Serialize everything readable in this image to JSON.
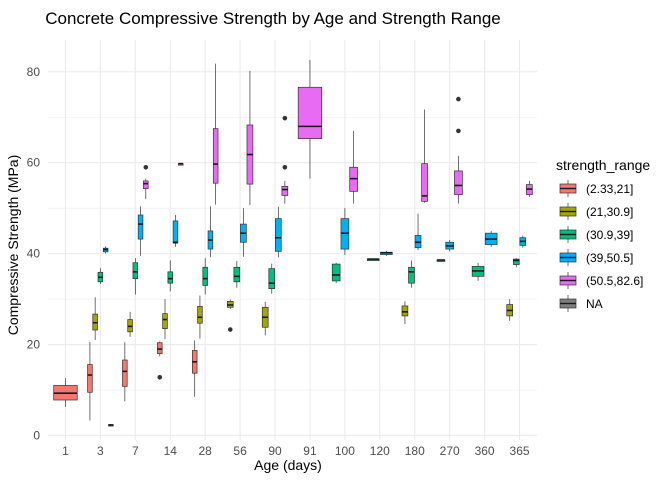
{
  "chart_data": {
    "type": "boxplot",
    "title": "Concrete Compressive Strength by Age and Strength Range",
    "xlabel": "Age (days)",
    "ylabel": "Compressive Strength (MPa)",
    "ylim": [
      -1,
      87
    ],
    "yticks": [
      0,
      20,
      40,
      60,
      80
    ],
    "categories": [
      "1",
      "3",
      "7",
      "14",
      "28",
      "56",
      "90",
      "91",
      "100",
      "120",
      "180",
      "270",
      "360",
      "365"
    ],
    "grid": true,
    "legend": {
      "title": "strength_range",
      "placement": "right",
      "entries": [
        {
          "label": "(2.33,21]",
          "color": "#F8766D"
        },
        {
          "label": "(21,30.9]",
          "color": "#A3A500"
        },
        {
          "label": "(30.9,39]",
          "color": "#00BF7D"
        },
        {
          "label": "(39,50.5]",
          "color": "#00B0F6"
        },
        {
          "label": "(50.5,82.6]",
          "color": "#E76BF3"
        },
        {
          "label": "NA",
          "color": "#7F7F7F"
        }
      ]
    },
    "boxes": [
      {
        "category": "1",
        "group": "(2.33,21]",
        "whisker_low": 6.3,
        "q1": 7.8,
        "median": 9.3,
        "q3": 11.0,
        "whisker_high": 12.6,
        "outliers": []
      },
      {
        "category": "3",
        "group": "(2.33,21]",
        "whisker_low": 3.3,
        "q1": 9.5,
        "median": 13.3,
        "q3": 15.6,
        "whisker_high": 20.6,
        "outliers": []
      },
      {
        "category": "3",
        "group": "(21,30.9]",
        "whisker_low": 21.0,
        "q1": 23.2,
        "median": 24.8,
        "q3": 26.7,
        "whisker_high": 30.4,
        "outliers": []
      },
      {
        "category": "3",
        "group": "(30.9,39]",
        "whisker_low": 33.3,
        "q1": 33.8,
        "median": 34.8,
        "q3": 35.9,
        "whisker_high": 36.8,
        "outliers": []
      },
      {
        "category": "3",
        "group": "(39,50.5]",
        "whisker_low": 40.0,
        "q1": 40.4,
        "median": 40.9,
        "q3": 41.2,
        "whisker_high": 41.6,
        "outliers": []
      },
      {
        "category": "3",
        "group": "NA",
        "whisker_low": 2.3,
        "q1": 2.3,
        "median": 2.3,
        "q3": 2.4,
        "whisker_high": 2.4,
        "outliers": []
      },
      {
        "category": "7",
        "group": "(2.33,21]",
        "whisker_low": 7.5,
        "q1": 10.8,
        "median": 14.1,
        "q3": 16.6,
        "whisker_high": 20.5,
        "outliers": []
      },
      {
        "category": "7",
        "group": "(21,30.9]",
        "whisker_low": 21.7,
        "q1": 22.8,
        "median": 24.0,
        "q3": 25.5,
        "whisker_high": 27.2,
        "outliers": []
      },
      {
        "category": "7",
        "group": "(30.9,39]",
        "whisker_low": 31.0,
        "q1": 34.5,
        "median": 36.0,
        "q3": 38.0,
        "whisker_high": 39.0,
        "outliers": []
      },
      {
        "category": "7",
        "group": "(39,50.5]",
        "whisker_low": 39.5,
        "q1": 43.2,
        "median": 46.5,
        "q3": 48.5,
        "whisker_high": 50.4,
        "outliers": []
      },
      {
        "category": "7",
        "group": "(50.5,82.6]",
        "whisker_low": 52.0,
        "q1": 54.3,
        "median": 55.4,
        "q3": 56.0,
        "whisker_high": 56.5,
        "outliers": [
          59.0
        ]
      },
      {
        "category": "14",
        "group": "(2.33,21]",
        "whisker_low": 17.4,
        "q1": 18.0,
        "median": 19.0,
        "q3": 20.4,
        "whisker_high": 20.7,
        "outliers": [
          12.8
        ]
      },
      {
        "category": "14",
        "group": "(21,30.9]",
        "whisker_low": 21.2,
        "q1": 23.5,
        "median": 25.5,
        "q3": 26.8,
        "whisker_high": 30.0,
        "outliers": []
      },
      {
        "category": "14",
        "group": "(30.9,39]",
        "whisker_low": 31.7,
        "q1": 33.5,
        "median": 34.5,
        "q3": 36.0,
        "whisker_high": 38.5,
        "outliers": []
      },
      {
        "category": "14",
        "group": "(39,50.5]",
        "whisker_low": 41.5,
        "q1": 42.3,
        "median": 42.5,
        "q3": 47.2,
        "whisker_high": 48.5,
        "outliers": []
      },
      {
        "category": "14",
        "group": "(50.5,82.6]",
        "whisker_low": 59.8,
        "q1": 59.8,
        "median": 59.8,
        "q3": 59.8,
        "whisker_high": 59.8,
        "outliers": []
      },
      {
        "category": "28",
        "group": "(2.33,21]",
        "whisker_low": 8.5,
        "q1": 13.7,
        "median": 16.2,
        "q3": 18.7,
        "whisker_high": 20.9,
        "outliers": []
      },
      {
        "category": "28",
        "group": "(21,30.9]",
        "whisker_low": 21.3,
        "q1": 24.7,
        "median": 26.0,
        "q3": 28.4,
        "whisker_high": 30.8,
        "outliers": []
      },
      {
        "category": "28",
        "group": "(30.9,39]",
        "whisker_low": 31.0,
        "q1": 33.0,
        "median": 34.5,
        "q3": 37.0,
        "whisker_high": 39.0,
        "outliers": []
      },
      {
        "category": "28",
        "group": "(39,50.5]",
        "whisker_low": 39.2,
        "q1": 41.0,
        "median": 43.0,
        "q3": 45.0,
        "whisker_high": 50.4,
        "outliers": []
      },
      {
        "category": "28",
        "group": "(50.5,82.6]",
        "whisker_low": 50.8,
        "q1": 55.5,
        "median": 59.7,
        "q3": 67.5,
        "whisker_high": 81.8,
        "outliers": []
      },
      {
        "category": "56",
        "group": "(21,30.9]",
        "whisker_low": 27.8,
        "q1": 28.2,
        "median": 28.7,
        "q3": 29.5,
        "whisker_high": 29.9,
        "outliers": [
          23.3
        ]
      },
      {
        "category": "56",
        "group": "(30.9,39]",
        "whisker_low": 32.5,
        "q1": 33.8,
        "median": 35.0,
        "q3": 37.0,
        "whisker_high": 38.4,
        "outliers": []
      },
      {
        "category": "56",
        "group": "(39,50.5]",
        "whisker_low": 39.3,
        "q1": 42.5,
        "median": 44.5,
        "q3": 46.5,
        "whisker_high": 50.0,
        "outliers": []
      },
      {
        "category": "56",
        "group": "(50.5,82.6]",
        "whisker_low": 50.7,
        "q1": 55.3,
        "median": 61.8,
        "q3": 68.3,
        "whisker_high": 80.2,
        "outliers": []
      },
      {
        "category": "90",
        "group": "(21,30.9]",
        "whisker_low": 22.0,
        "q1": 23.8,
        "median": 26.0,
        "q3": 28.2,
        "whisker_high": 29.4,
        "outliers": []
      },
      {
        "category": "90",
        "group": "(30.9,39]",
        "whisker_low": 31.2,
        "q1": 32.3,
        "median": 33.5,
        "q3": 36.7,
        "whisker_high": 37.8,
        "outliers": []
      },
      {
        "category": "90",
        "group": "(39,50.5]",
        "whisker_low": 39.2,
        "q1": 40.5,
        "median": 43.5,
        "q3": 47.7,
        "whisker_high": 50.3,
        "outliers": []
      },
      {
        "category": "90",
        "group": "(50.5,82.6]",
        "whisker_low": 51.0,
        "q1": 52.8,
        "median": 54.1,
        "q3": 54.8,
        "whisker_high": 56.0,
        "outliers": [
          59.0,
          69.8
        ]
      },
      {
        "category": "91",
        "group": "(50.5,82.6]",
        "whisker_low": 56.5,
        "q1": 65.3,
        "median": 68.0,
        "q3": 76.6,
        "whisker_high": 82.6,
        "outliers": []
      },
      {
        "category": "100",
        "group": "(30.9,39]",
        "whisker_low": 33.5,
        "q1": 34.0,
        "median": 35.3,
        "q3": 37.7,
        "whisker_high": 38.0,
        "outliers": []
      },
      {
        "category": "100",
        "group": "(39,50.5]",
        "whisker_low": 39.7,
        "q1": 41.0,
        "median": 44.5,
        "q3": 47.7,
        "whisker_high": 50.0,
        "outliers": []
      },
      {
        "category": "100",
        "group": "(50.5,82.6]",
        "whisker_low": 51.0,
        "q1": 53.7,
        "median": 56.5,
        "q3": 59.0,
        "whisker_high": 67.0,
        "outliers": []
      },
      {
        "category": "120",
        "group": "(30.9,39]",
        "whisker_low": 38.8,
        "q1": 38.8,
        "median": 38.8,
        "q3": 38.8,
        "whisker_high": 38.8,
        "outliers": []
      },
      {
        "category": "120",
        "group": "(39,50.5]",
        "whisker_low": 39.5,
        "q1": 39.8,
        "median": 40.2,
        "q3": 40.3,
        "whisker_high": 40.6,
        "outliers": []
      },
      {
        "category": "180",
        "group": "(21,30.9]",
        "whisker_low": 24.5,
        "q1": 26.3,
        "median": 27.2,
        "q3": 28.5,
        "whisker_high": 29.5,
        "outliers": []
      },
      {
        "category": "180",
        "group": "(30.9,39]",
        "whisker_low": 32.5,
        "q1": 33.5,
        "median": 36.0,
        "q3": 37.0,
        "whisker_high": 38.5,
        "outliers": []
      },
      {
        "category": "180",
        "group": "(39,50.5]",
        "whisker_low": 40.8,
        "q1": 41.3,
        "median": 42.5,
        "q3": 44.0,
        "whisker_high": 48.8,
        "outliers": []
      },
      {
        "category": "180",
        "group": "(50.5,82.6]",
        "whisker_low": 51.2,
        "q1": 51.5,
        "median": 52.7,
        "q3": 59.8,
        "whisker_high": 71.7,
        "outliers": []
      },
      {
        "category": "270",
        "group": "(30.9,39]",
        "whisker_low": 38.6,
        "q1": 38.6,
        "median": 38.6,
        "q3": 38.6,
        "whisker_high": 38.6,
        "outliers": []
      },
      {
        "category": "270",
        "group": "(39,50.5]",
        "whisker_low": 40.5,
        "q1": 41.0,
        "median": 41.7,
        "q3": 42.5,
        "whisker_high": 43.0,
        "outliers": []
      },
      {
        "category": "270",
        "group": "(50.5,82.6]",
        "whisker_low": 51.0,
        "q1": 53.0,
        "median": 55.0,
        "q3": 58.2,
        "whisker_high": 61.5,
        "outliers": [
          67.0,
          74.0
        ]
      },
      {
        "category": "360",
        "group": "(30.9,39]",
        "whisker_low": 34.0,
        "q1": 35.0,
        "median": 36.2,
        "q3": 37.2,
        "whisker_high": 38.0,
        "outliers": []
      },
      {
        "category": "360",
        "group": "(39,50.5]",
        "whisker_low": 41.5,
        "q1": 42.0,
        "median": 43.2,
        "q3": 44.5,
        "whisker_high": 45.0,
        "outliers": []
      },
      {
        "category": "365",
        "group": "(21,30.9]",
        "whisker_low": 25.2,
        "q1": 26.3,
        "median": 27.5,
        "q3": 28.8,
        "whisker_high": 30.0,
        "outliers": []
      },
      {
        "category": "365",
        "group": "(30.9,39]",
        "whisker_low": 37.0,
        "q1": 37.6,
        "median": 38.5,
        "q3": 38.8,
        "whisker_high": 39.0,
        "outliers": []
      },
      {
        "category": "365",
        "group": "(39,50.5]",
        "whisker_low": 41.3,
        "q1": 41.8,
        "median": 42.7,
        "q3": 43.5,
        "whisker_high": 44.0,
        "outliers": []
      },
      {
        "category": "365",
        "group": "(50.5,82.6]",
        "whisker_low": 52.5,
        "q1": 53.0,
        "median": 54.2,
        "q3": 55.2,
        "whisker_high": 56.0,
        "outliers": []
      }
    ]
  }
}
